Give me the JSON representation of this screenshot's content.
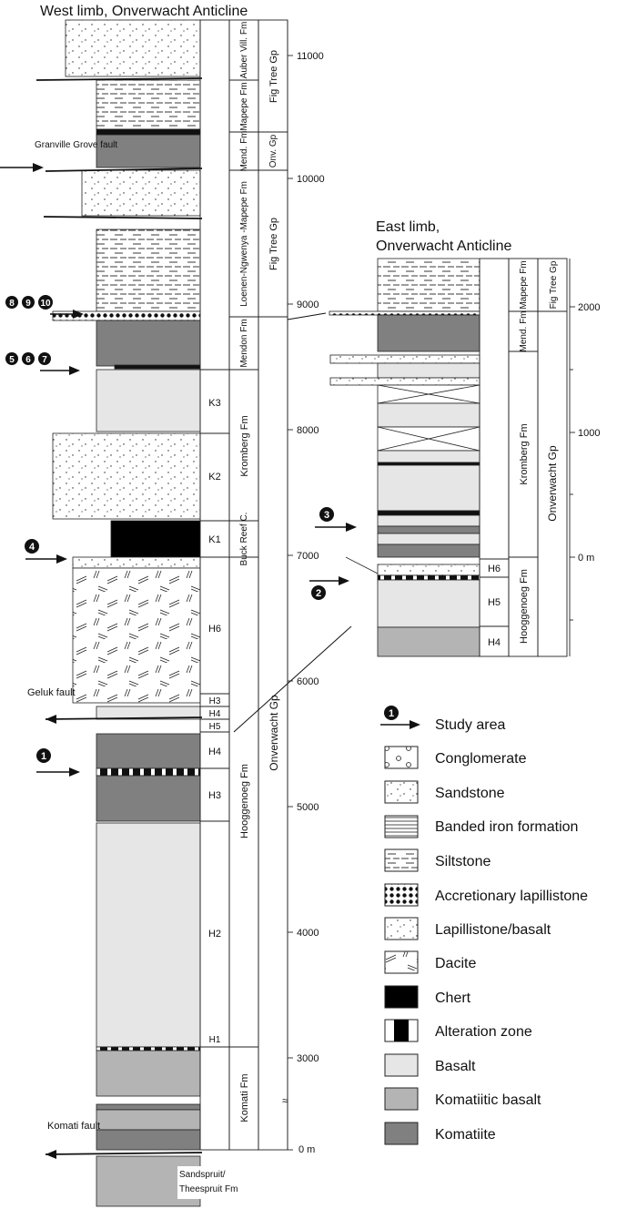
{
  "west": {
    "title": "West limb, Onverwacht Anticline",
    "scale_ticks": [
      "0 m",
      "3000",
      "4000",
      "5000",
      "6000",
      "7000",
      "8000",
      "9000",
      "10000",
      "11000"
    ],
    "members": [
      "K3",
      "K2",
      "K1",
      "H6",
      "H3",
      "H4",
      "H5",
      "H4",
      "H3",
      "H2",
      "H1"
    ],
    "formations": [
      "Auber Vill. Fm",
      "Mapepe Fm",
      "Mend. Fm",
      "Loenen-Ngwenya -Mapepe Fm",
      "Mendon Fm",
      "Kromberg Fm",
      "Buck Reef C.",
      "Hooggenoeg Fm",
      "Komati Fm"
    ],
    "groups": [
      "Fig Tree Gp",
      "Onv. Gp",
      "Fig Tree Gp",
      "Onverwacht Gp"
    ],
    "faults": [
      "Granville Grove fault",
      "Geluk fault",
      "Komati fault"
    ],
    "base_unit": [
      "Sandspruit/",
      "Theespruit Fm"
    ]
  },
  "east": {
    "title": [
      "East limb,",
      "Onverwacht Anticline"
    ],
    "scale_ticks": [
      "0 m",
      "1000",
      "2000"
    ],
    "members": [
      "H6",
      "H5",
      "H4"
    ],
    "formations": [
      "Mapepe Fm",
      "Mend. Fm",
      "Kromberg Fm",
      "Hooggenoeg Fm"
    ],
    "groups": [
      "Fig Tree Gp",
      "Onverwacht Gp"
    ]
  },
  "study_markers": [
    "1",
    "2",
    "3",
    "4",
    "5",
    "6",
    "7",
    "8",
    "9",
    "10"
  ],
  "legend": {
    "marker": "1",
    "items": [
      "Study area",
      "Conglomerate",
      "Sandstone",
      "Banded iron formation",
      "Siltstone",
      "Accretionary lapillistone",
      "Lapillistone/basalt",
      "Dacite",
      "Chert",
      "Alteration zone",
      "Basalt",
      "Komatiitic basalt",
      "Komatiite"
    ]
  },
  "colors": {
    "basalt": "#e6e6e6",
    "komatiitic_basalt": "#b4b4b4",
    "komatiite": "#808080",
    "chert": "#000000"
  }
}
